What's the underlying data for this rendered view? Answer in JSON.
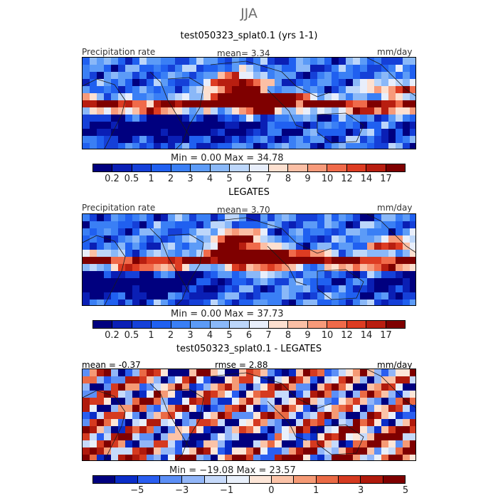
{
  "title": "JJA",
  "panels": [
    {
      "title": "test050323_splat0.1 (yrs 1-1)",
      "left_label": "Precipitation rate",
      "center_label": "mean=     3.34",
      "right_label": "mm/day",
      "minmax": "Min =     0.00  Max =   34.78",
      "ticks": [
        "0.2",
        "0.5",
        "1",
        "2",
        "3",
        "4",
        "5",
        "6",
        "7",
        "8",
        "9",
        "10",
        "12",
        "14",
        "17"
      ]
    },
    {
      "title": "LEGATES",
      "left_label": "Precipitation rate",
      "center_label": "mean=     3.70",
      "right_label": "mm/day",
      "minmax": "Min =     0.00  Max =   37.73",
      "ticks": [
        "0.2",
        "0.5",
        "1",
        "2",
        "3",
        "4",
        "5",
        "6",
        "7",
        "8",
        "9",
        "10",
        "12",
        "14",
        "17"
      ]
    },
    {
      "title": "test050323_splat0.1 - LEGATES",
      "left_label": "mean =   -0.37",
      "center_label": "rmse =     2.88",
      "right_label": "mm/day",
      "minmax": "Min = −19.08  Max =   23.57",
      "ticks": [
        "−5",
        "−3",
        "−1",
        "0",
        "1",
        "3",
        "5"
      ]
    }
  ],
  "colors": {
    "precip_scale": [
      "#00007f",
      "#0a1fb5",
      "#1540d8",
      "#2060f0",
      "#3a7ff5",
      "#5c9bf7",
      "#8ab8f8",
      "#bcd6fa",
      "#e8eefb",
      "#fde0d0",
      "#fbbfa5",
      "#f79a7a",
      "#f06a4a",
      "#dd3c22",
      "#b81e10",
      "#7f0000"
    ],
    "diff_scale": [
      "#00007f",
      "#0a2dc8",
      "#2a5ef0",
      "#5c8ff6",
      "#92b6f8",
      "#c6dafb",
      "#e9f0fb",
      "#fde6d8",
      "#fbc3a8",
      "#f59a75",
      "#ea6a45",
      "#d53a20",
      "#b01a0c",
      "#7f0000"
    ]
  }
}
